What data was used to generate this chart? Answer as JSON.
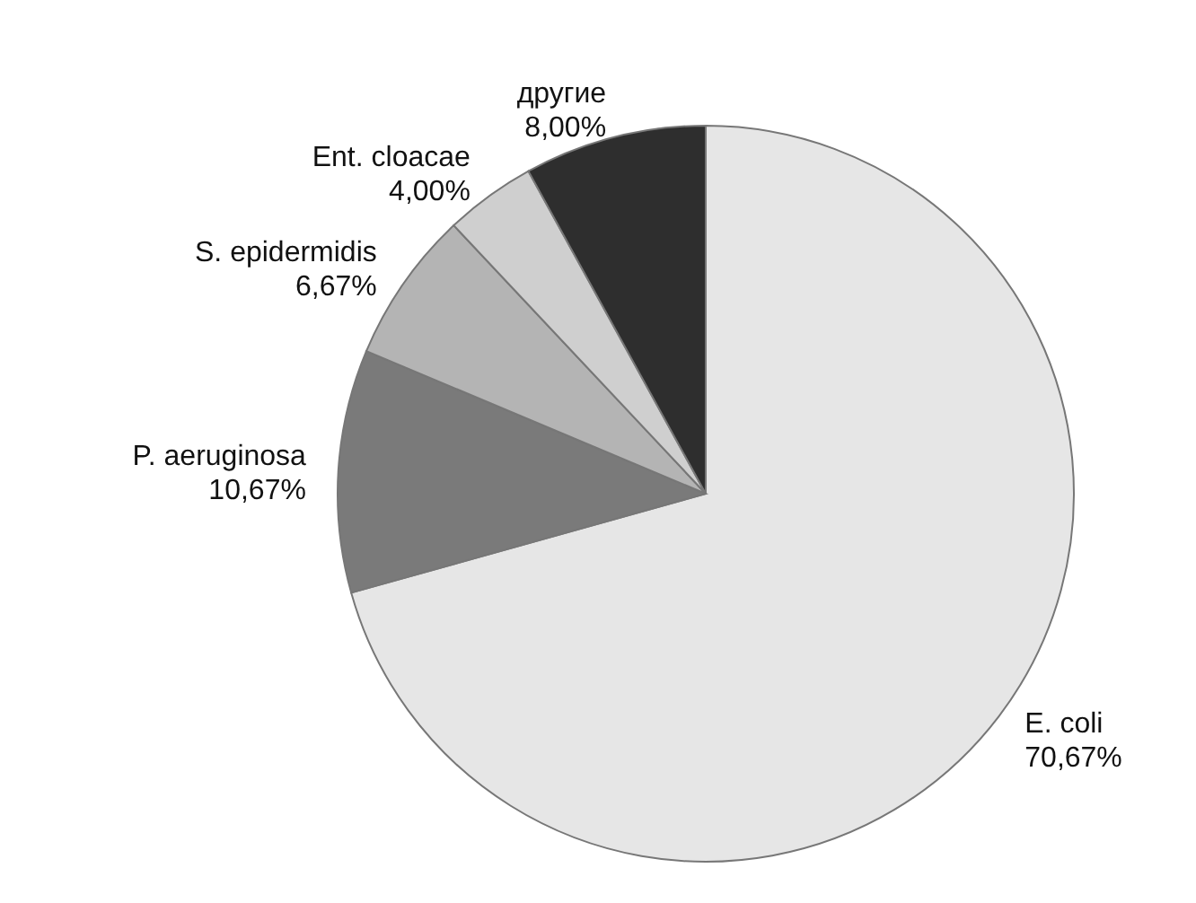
{
  "chart_data": {
    "type": "pie",
    "categories": [
      "E. coli",
      "P. aeruginosa",
      "S. epidermidis",
      "Ent. cloacae",
      "другие"
    ],
    "values": [
      70.67,
      10.67,
      6.67,
      4.0,
      8.0
    ],
    "value_labels": [
      "70,67%",
      "10,67%",
      "6,67%",
      "4,00%",
      "8,00%"
    ],
    "colors": [
      "#e6e6e6",
      "#7a7a7a",
      "#b4b4b4",
      "#cfcfcf",
      "#2e2e2e"
    ],
    "legend": false
  }
}
